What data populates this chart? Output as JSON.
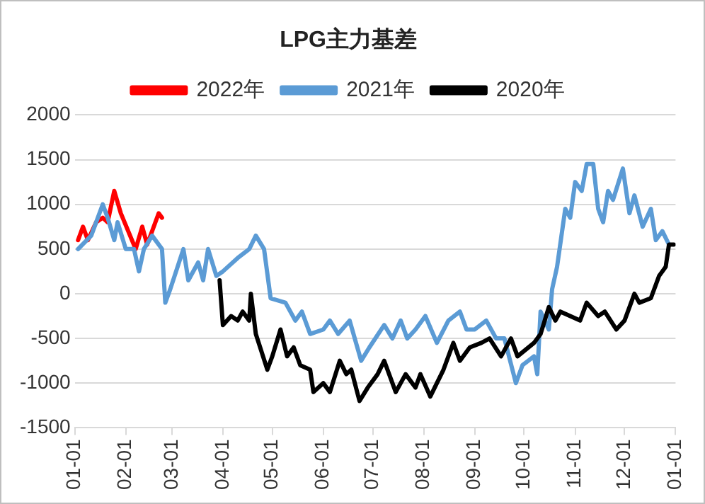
{
  "chart_data": {
    "type": "line",
    "title": "LPG主力基差",
    "legend": "top",
    "grid": "y",
    "marker": "none",
    "line_style": "solid",
    "ylim": [
      -1500,
      2000
    ],
    "yticks": [
      -1500,
      -1000,
      -500,
      0,
      500,
      1000,
      1500,
      2000
    ],
    "xlim": [
      "2021-01-01",
      "2022-01-01"
    ],
    "xticks": [
      {
        "value": "2021-01-01",
        "label": "01-01"
      },
      {
        "value": "2021-02-01",
        "label": "02-01"
      },
      {
        "value": "2021-03-01",
        "label": "03-01"
      },
      {
        "value": "2021-04-01",
        "label": "04-01"
      },
      {
        "value": "2021-05-01",
        "label": "05-01"
      },
      {
        "value": "2021-06-01",
        "label": "06-01"
      },
      {
        "value": "2021-07-01",
        "label": "07-01"
      },
      {
        "value": "2021-08-01",
        "label": "08-01"
      },
      {
        "value": "2021-09-01",
        "label": "09-01"
      },
      {
        "value": "2021-10-01",
        "label": "10-01"
      },
      {
        "value": "2021-11-01",
        "label": "11-01"
      },
      {
        "value": "2021-12-01",
        "label": "12-01"
      },
      {
        "value": "2022-01-01",
        "label": "01-01"
      }
    ],
    "series": [
      {
        "name": "2022年",
        "color": "#ff0000",
        "x": [
          "2021-01-03",
          "2021-01-06",
          "2021-01-09",
          "2021-01-14",
          "2021-01-18",
          "2021-01-21",
          "2021-01-25",
          "2021-01-29",
          "2021-02-07",
          "2021-02-11",
          "2021-02-14",
          "2021-02-21",
          "2021-02-23"
        ],
        "values": [
          600,
          750,
          600,
          800,
          850,
          800,
          1150,
          900,
          500,
          750,
          550,
          900,
          850
        ]
      },
      {
        "name": "2021年",
        "color": "#5b9bd5",
        "x": [
          "2021-01-03",
          "2021-01-11",
          "2021-01-18",
          "2021-01-21",
          "2021-01-25",
          "2021-01-27",
          "2021-02-01",
          "2021-02-06",
          "2021-02-09",
          "2021-02-12",
          "2021-02-17",
          "2021-02-23",
          "2021-02-25",
          "2021-02-28",
          "2021-03-08",
          "2021-03-11",
          "2021-03-17",
          "2021-03-20",
          "2021-03-23",
          "2021-03-28",
          "2021-04-01",
          "2021-04-10",
          "2021-04-17",
          "2021-04-21",
          "2021-04-26",
          "2021-04-30",
          "2021-05-09",
          "2021-05-15",
          "2021-05-19",
          "2021-05-24",
          "2021-06-01",
          "2021-06-05",
          "2021-06-10",
          "2021-06-17",
          "2021-06-24",
          "2021-06-29",
          "2021-07-08",
          "2021-07-13",
          "2021-07-18",
          "2021-07-22",
          "2021-07-27",
          "2021-08-02",
          "2021-08-09",
          "2021-08-16",
          "2021-08-23",
          "2021-08-27",
          "2021-09-01",
          "2021-09-08",
          "2021-09-14",
          "2021-09-19",
          "2021-09-26",
          "2021-09-30",
          "2021-10-07",
          "2021-10-09",
          "2021-10-11",
          "2021-10-16",
          "2021-10-18",
          "2021-10-21",
          "2021-10-26",
          "2021-10-29",
          "2021-11-01",
          "2021-11-05",
          "2021-11-08",
          "2021-11-12",
          "2021-11-15",
          "2021-11-18",
          "2021-11-21",
          "2021-11-24",
          "2021-11-30",
          "2021-12-04",
          "2021-12-07",
          "2021-12-12",
          "2021-12-17",
          "2021-12-20",
          "2021-12-24",
          "2021-12-28"
        ],
        "values": [
          500,
          650,
          1000,
          850,
          600,
          800,
          500,
          500,
          250,
          500,
          650,
          500,
          -100,
          50,
          500,
          150,
          350,
          150,
          500,
          200,
          250,
          400,
          500,
          650,
          500,
          -50,
          -100,
          -300,
          -200,
          -450,
          -400,
          -300,
          -450,
          -300,
          -750,
          -600,
          -350,
          -500,
          -300,
          -500,
          -400,
          -250,
          -550,
          -300,
          -200,
          -400,
          -400,
          -300,
          -500,
          -500,
          -1000,
          -800,
          -700,
          -900,
          -200,
          -400,
          50,
          300,
          950,
          850,
          1250,
          1150,
          1450,
          1450,
          950,
          800,
          1150,
          1050,
          1400,
          900,
          1100,
          750,
          950,
          600,
          700,
          550
        ]
      },
      {
        "name": "2020年",
        "color": "#000000",
        "x": [
          "2021-03-30",
          "2021-04-01",
          "2021-04-06",
          "2021-04-10",
          "2021-04-13",
          "2021-04-17",
          "2021-04-18",
          "2021-04-21",
          "2021-04-28",
          "2021-05-01",
          "2021-05-06",
          "2021-05-10",
          "2021-05-14",
          "2021-05-18",
          "2021-05-24",
          "2021-05-26",
          "2021-06-01",
          "2021-06-05",
          "2021-06-11",
          "2021-06-15",
          "2021-06-18",
          "2021-06-23",
          "2021-06-28",
          "2021-07-04",
          "2021-07-08",
          "2021-07-15",
          "2021-07-21",
          "2021-07-27",
          "2021-07-30",
          "2021-08-05",
          "2021-08-13",
          "2021-08-19",
          "2021-08-23",
          "2021-08-29",
          "2021-09-05",
          "2021-09-10",
          "2021-09-17",
          "2021-09-23",
          "2021-09-27",
          "2021-10-07",
          "2021-10-11",
          "2021-10-16",
          "2021-10-20",
          "2021-10-23",
          "2021-10-29",
          "2021-11-04",
          "2021-11-08",
          "2021-11-15",
          "2021-11-19",
          "2021-11-26",
          "2021-12-01",
          "2021-12-07",
          "2021-12-10",
          "2021-12-17",
          "2021-12-22",
          "2021-12-26",
          "2021-12-28",
          "2021-12-31"
        ],
        "values": [
          150,
          -350,
          -250,
          -300,
          -200,
          -300,
          0,
          -450,
          -850,
          -700,
          -400,
          -700,
          -600,
          -800,
          -850,
          -1100,
          -1000,
          -1100,
          -750,
          -900,
          -850,
          -1200,
          -1050,
          -900,
          -750,
          -1100,
          -900,
          -1050,
          -900,
          -1150,
          -850,
          -550,
          -750,
          -600,
          -550,
          -500,
          -700,
          -500,
          -700,
          -550,
          -450,
          -150,
          -300,
          -200,
          -250,
          -300,
          -100,
          -250,
          -200,
          -400,
          -300,
          0,
          -100,
          -50,
          200,
          300,
          550,
          550
        ]
      }
    ]
  }
}
